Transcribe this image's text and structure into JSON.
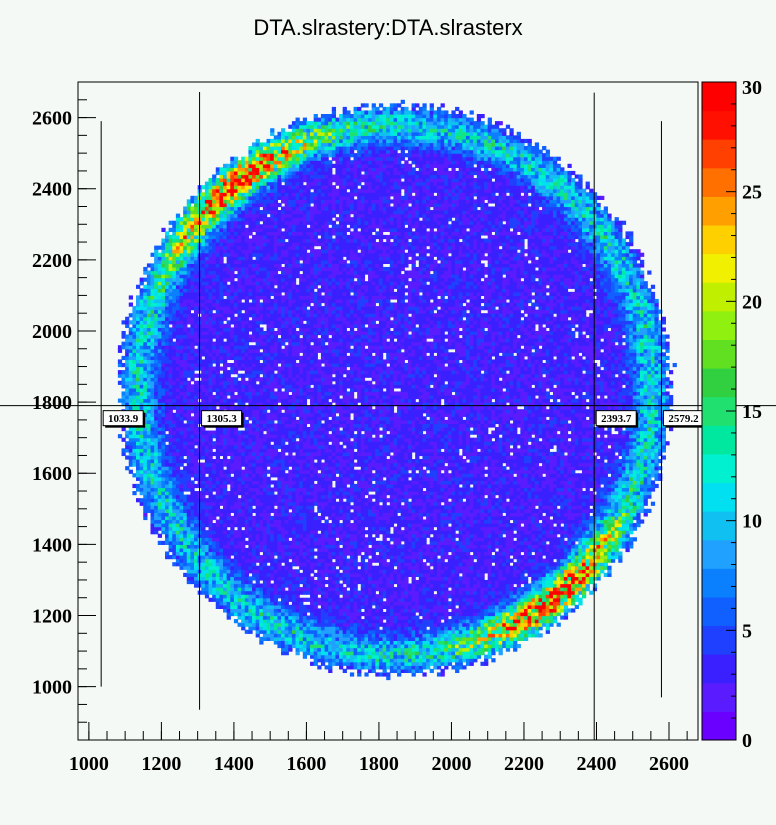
{
  "chart_data": {
    "type": "heatmap",
    "title": "DTA.slrastery:DTA.slrasterx",
    "xlabel": "",
    "ylabel": "",
    "xlim": [
      970,
      2680
    ],
    "ylim": [
      850,
      2700
    ],
    "x_ticks": [
      "1000",
      "1200",
      "1400",
      "1600",
      "1800",
      "2000",
      "2200",
      "2400",
      "2600"
    ],
    "y_ticks": [
      "1000",
      "1200",
      "1400",
      "1600",
      "1800",
      "2000",
      "2200",
      "2400",
      "2600"
    ],
    "colorbar": {
      "min": 0,
      "max": 30,
      "ticks": [
        "0",
        "5",
        "10",
        "15",
        "20",
        "25",
        "30"
      ],
      "palette": [
        "#6a00ff",
        "#5a1cff",
        "#3a20ff",
        "#2040ff",
        "#1060ff",
        "#0a80ff",
        "#20a0ff",
        "#10c0f0",
        "#00e0f0",
        "#00f0d0",
        "#00e8a0",
        "#20e070",
        "#30d040",
        "#60e020",
        "#90f010",
        "#c0f000",
        "#f0f000",
        "#ffd000",
        "#ffa000",
        "#ff7000",
        "#ff4000",
        "#ff1000",
        "#ff0000"
      ]
    },
    "grid": false,
    "distribution": {
      "shape": "raster ellipse with bright rim",
      "center": [
        1840,
        1830
      ],
      "radius_x": 760,
      "radius_y": 800,
      "interior_level": 3,
      "rim_level": 11,
      "peak_level": 27
    },
    "cut_lines": {
      "horizontal_y": 1790,
      "vertical": [
        {
          "x": 1033.9,
          "label": "1033.9",
          "y_range": [
            1000,
            2590
          ]
        },
        {
          "x": 1305.3,
          "label": "1305.3",
          "y_range": [
            935,
            2760
          ]
        },
        {
          "x": 2393.7,
          "label": "2393.7",
          "y_range": [
            850,
            2670
          ]
        },
        {
          "x": 2579.2,
          "label": "2579.2",
          "y_range": [
            970,
            2590
          ]
        }
      ]
    }
  }
}
